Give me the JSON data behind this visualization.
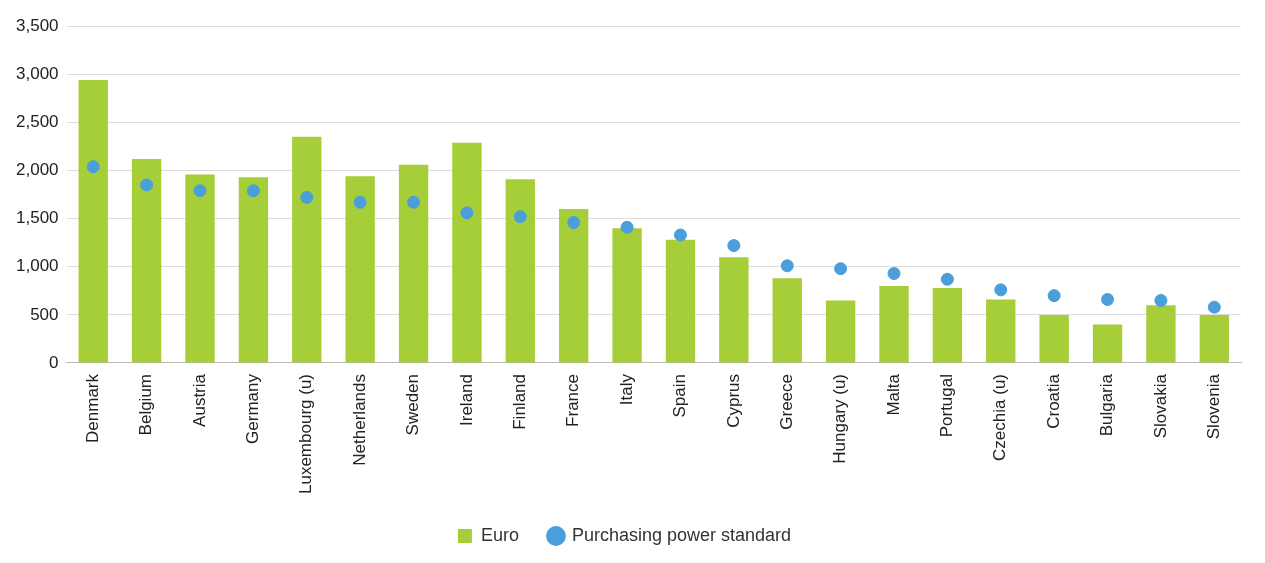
{
  "chart_data": {
    "type": "bar",
    "categories": [
      "Denmark",
      "Belgium",
      "Austria",
      "Germany",
      "Luxembourg (u)",
      "Netherlands",
      "Sweden",
      "Ireland",
      "Finland",
      "France",
      "Italy",
      "Spain",
      "Cyprus",
      "Greece",
      "Hungary (u)",
      "Malta",
      "Portugal",
      "Czechia (u)",
      "Croatia",
      "Bulgaria",
      "Slovakia",
      "Slovenia"
    ],
    "series": [
      {
        "name": "Euro",
        "color": "#a6ce39",
        "values": [
          2940,
          2120,
          1960,
          1930,
          2350,
          1940,
          2060,
          2290,
          1910,
          1600,
          1400,
          1280,
          1100,
          880,
          650,
          800,
          780,
          660,
          500,
          400,
          600,
          500
        ]
      },
      {
        "name": "Purchasing power standard",
        "type": "scatter",
        "color": "#4a9fdb",
        "x": [
          "Denmark",
          "Belgium",
          "Austria",
          "Germany",
          "Luxembourg (u)",
          "Netherlands",
          "Sweden",
          "Ireland",
          "Finland",
          "France",
          "Italy",
          "Spain",
          "Cyprus",
          "Greece",
          "Hungary (u)",
          "Malta",
          "Portugal",
          "Czechia (u)",
          "Croatia",
          "Bulgaria",
          "Slovakia",
          "Slovenia"
        ],
        "values": [
          2040,
          1850,
          1790,
          1790,
          1720,
          1670,
          1670,
          1560,
          1520,
          1460,
          1410,
          1330,
          1220,
          1010,
          980,
          930,
          870,
          760,
          700,
          660,
          650,
          580
        ]
      }
    ],
    "ylim": [
      0,
      3500
    ],
    "yticks": [
      0,
      500,
      {
        "value": 1000,
        "label": "1,000"
      },
      {
        "value": 1500,
        "label": "1,500"
      },
      {
        "value": 2000,
        "label": "2,000"
      },
      {
        "value": 2500,
        "label": "2,500"
      },
      {
        "value": 3000,
        "label": "3,000"
      },
      {
        "value": 3500,
        "label": "3,500"
      }
    ],
    "grid": "y",
    "legend": "bottom",
    "marker": "circle"
  }
}
